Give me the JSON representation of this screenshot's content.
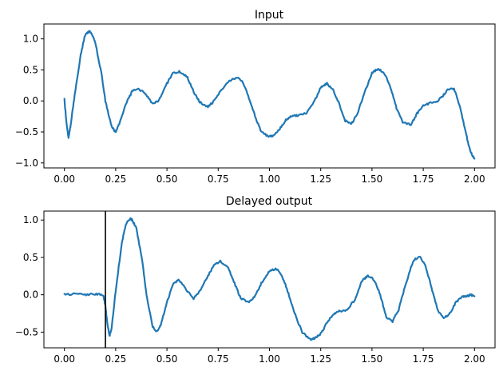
{
  "chart_data": [
    {
      "type": "line",
      "title": "Input",
      "xlabel": "",
      "ylabel": "",
      "xlim": [
        -0.1,
        2.1
      ],
      "ylim": [
        -1.08,
        1.24
      ],
      "xticks": [
        0.0,
        0.25,
        0.5,
        0.75,
        1.0,
        1.25,
        1.5,
        1.75,
        2.0
      ],
      "xtick_labels": [
        "0.00",
        "0.25",
        "0.50",
        "0.75",
        "1.00",
        "1.25",
        "1.50",
        "1.75",
        "2.00"
      ],
      "yticks": [
        1.0,
        0.5,
        0.0,
        -0.5,
        -1.0
      ],
      "ytick_labels": [
        "1.0",
        "0.5",
        "0.0",
        "−0.5",
        "−1.0"
      ],
      "grid": false,
      "series": [
        {
          "color": "#1f77b4",
          "x": [
            0.0,
            0.01,
            0.02,
            0.03,
            0.05,
            0.08,
            0.1,
            0.12,
            0.13,
            0.15,
            0.18,
            0.2,
            0.23,
            0.25,
            0.27,
            0.3,
            0.33,
            0.36,
            0.4,
            0.43,
            0.46,
            0.5,
            0.53,
            0.56,
            0.6,
            0.63,
            0.66,
            0.7,
            0.73,
            0.76,
            0.8,
            0.84,
            0.87,
            0.9,
            0.93,
            0.96,
            1.0,
            1.02,
            1.05,
            1.08,
            1.11,
            1.14,
            1.18,
            1.22,
            1.25,
            1.28,
            1.31,
            1.34,
            1.37,
            1.4,
            1.43,
            1.46,
            1.5,
            1.53,
            1.56,
            1.59,
            1.62,
            1.65,
            1.69,
            1.72,
            1.75,
            1.78,
            1.82,
            1.85,
            1.87,
            1.9,
            1.93,
            1.96,
            1.98,
            2.0
          ],
          "y": [
            0.02,
            -0.35,
            -0.6,
            -0.4,
            0.1,
            0.75,
            1.05,
            1.12,
            1.1,
            0.95,
            0.45,
            0.0,
            -0.42,
            -0.5,
            -0.35,
            -0.05,
            0.15,
            0.2,
            0.1,
            -0.05,
            0.0,
            0.28,
            0.45,
            0.47,
            0.38,
            0.15,
            -0.02,
            -0.1,
            0.0,
            0.15,
            0.32,
            0.38,
            0.3,
            0.05,
            -0.25,
            -0.5,
            -0.58,
            -0.55,
            -0.45,
            -0.3,
            -0.24,
            -0.23,
            -0.2,
            0.0,
            0.22,
            0.28,
            0.18,
            -0.05,
            -0.32,
            -0.37,
            -0.2,
            0.1,
            0.45,
            0.52,
            0.45,
            0.22,
            -0.12,
            -0.35,
            -0.38,
            -0.2,
            -0.08,
            -0.04,
            0.0,
            0.1,
            0.18,
            0.2,
            -0.1,
            -0.55,
            -0.82,
            -0.93
          ]
        }
      ]
    },
    {
      "type": "line",
      "title": "Delayed output",
      "xlabel": "",
      "ylabel": "",
      "xlim": [
        -0.1,
        2.1
      ],
      "ylim": [
        -0.71,
        1.12
      ],
      "xticks": [
        0.0,
        0.25,
        0.5,
        0.75,
        1.0,
        1.25,
        1.5,
        1.75,
        2.0
      ],
      "xtick_labels": [
        "0.00",
        "0.25",
        "0.50",
        "0.75",
        "1.00",
        "1.25",
        "1.50",
        "1.75",
        "2.00"
      ],
      "yticks": [
        1.0,
        0.5,
        0.0,
        -0.5
      ],
      "ytick_labels": [
        "1.0",
        "0.5",
        "0.0",
        "−0.5"
      ],
      "grid": false,
      "vline_x": 0.2,
      "vline_color": "#000000",
      "series": [
        {
          "color": "#1f77b4",
          "x": [
            0.0,
            0.05,
            0.1,
            0.15,
            0.19,
            0.2,
            0.21,
            0.22,
            0.23,
            0.25,
            0.28,
            0.3,
            0.32,
            0.33,
            0.35,
            0.38,
            0.4,
            0.43,
            0.45,
            0.47,
            0.5,
            0.53,
            0.56,
            0.6,
            0.63,
            0.66,
            0.7,
            0.73,
            0.76,
            0.8,
            0.83,
            0.86,
            0.9,
            0.93,
            0.96,
            1.0,
            1.04,
            1.07,
            1.1,
            1.13,
            1.16,
            1.2,
            1.22,
            1.25,
            1.28,
            1.31,
            1.34,
            1.38,
            1.42,
            1.45,
            1.48,
            1.51,
            1.54,
            1.57,
            1.6,
            1.63,
            1.66,
            1.7,
            1.73,
            1.76,
            1.79,
            1.82,
            1.85,
            1.88,
            1.91,
            1.94,
            1.96,
            1.98,
            2.0
          ],
          "y": [
            0.0,
            0.01,
            0.0,
            0.01,
            0.0,
            -0.15,
            -0.4,
            -0.55,
            -0.45,
            0.05,
            0.7,
            0.95,
            1.02,
            1.0,
            0.9,
            0.45,
            0.0,
            -0.42,
            -0.5,
            -0.4,
            -0.1,
            0.15,
            0.2,
            0.05,
            -0.05,
            0.05,
            0.25,
            0.4,
            0.45,
            0.35,
            0.15,
            -0.05,
            -0.1,
            -0.02,
            0.15,
            0.32,
            0.35,
            0.2,
            -0.05,
            -0.3,
            -0.5,
            -0.6,
            -0.58,
            -0.52,
            -0.38,
            -0.26,
            -0.22,
            -0.2,
            -0.05,
            0.18,
            0.26,
            0.2,
            0.0,
            -0.3,
            -0.36,
            -0.2,
            0.1,
            0.45,
            0.52,
            0.4,
            0.1,
            -0.2,
            -0.32,
            -0.25,
            -0.1,
            -0.03,
            -0.02,
            0.0,
            -0.02
          ]
        }
      ]
    }
  ]
}
